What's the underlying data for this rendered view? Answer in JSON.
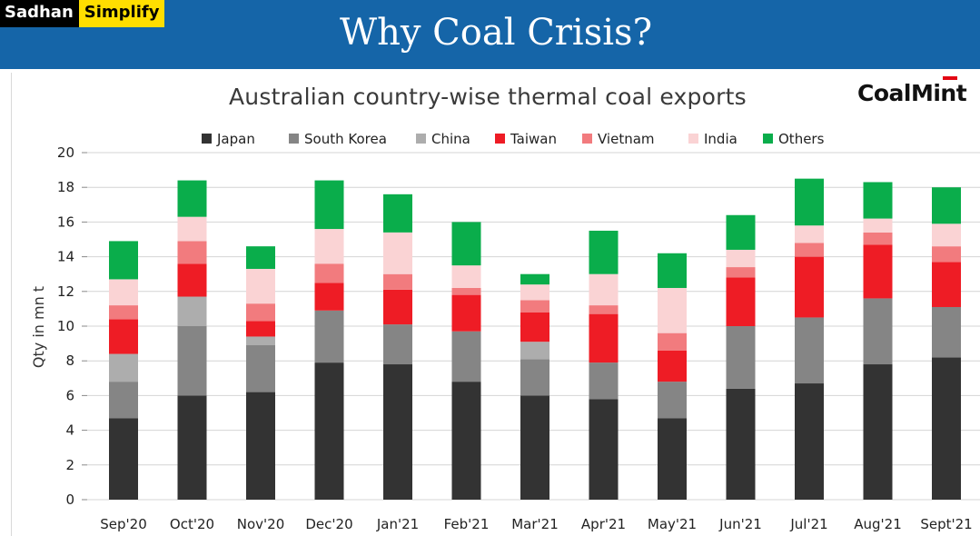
{
  "header": {
    "logo_part1": "Sadhan",
    "logo_part2": "Simplify",
    "title": "Why Coal Crisis?",
    "bar_color": "#1565a8"
  },
  "brand": {
    "name": "CoalMint",
    "accent_color": "#e30613"
  },
  "chart_data": {
    "type": "bar",
    "stacked": true,
    "title": "Australian country-wise thermal coal exports",
    "xlabel": "",
    "ylabel": "Qty in mn t",
    "ylim": [
      0,
      20
    ],
    "yticks": [
      0,
      2,
      4,
      6,
      8,
      10,
      12,
      14,
      16,
      18,
      20
    ],
    "grid": true,
    "legend_position": "top",
    "categories": [
      "Sep'20",
      "Oct'20",
      "Nov'20",
      "Dec'20",
      "Jan'21",
      "Feb'21",
      "Mar'21",
      "Apr'21",
      "May'21",
      "Jun'21",
      "Jul'21",
      "Aug'21",
      "Sept'21"
    ],
    "series": [
      {
        "name": "Japan",
        "color": "#333333",
        "values": [
          4.7,
          6.0,
          6.2,
          7.9,
          7.8,
          6.8,
          6.0,
          5.8,
          4.7,
          6.4,
          6.7,
          7.8,
          8.2
        ]
      },
      {
        "name": "South Korea",
        "color": "#858585",
        "values": [
          2.1,
          4.0,
          2.7,
          3.0,
          2.3,
          2.9,
          2.1,
          2.1,
          2.1,
          3.6,
          3.8,
          3.8,
          2.9
        ]
      },
      {
        "name": "China",
        "color": "#adadad",
        "values": [
          1.6,
          1.7,
          0.5,
          0.0,
          0.0,
          0.0,
          1.0,
          0.0,
          0.0,
          0.0,
          0.0,
          0.0,
          0.0
        ]
      },
      {
        "name": "Taiwan",
        "color": "#ee1c25",
        "values": [
          2.0,
          1.9,
          0.9,
          1.6,
          2.0,
          2.1,
          1.7,
          2.8,
          1.8,
          2.8,
          3.5,
          3.1,
          2.6
        ]
      },
      {
        "name": "Vietnam",
        "color": "#f27b7e",
        "values": [
          0.8,
          1.3,
          1.0,
          1.1,
          0.9,
          0.4,
          0.7,
          0.5,
          1.0,
          0.6,
          0.8,
          0.7,
          0.9
        ]
      },
      {
        "name": "India",
        "color": "#fad3d4",
        "values": [
          1.5,
          1.4,
          2.0,
          2.0,
          2.4,
          1.3,
          0.9,
          1.8,
          2.6,
          1.0,
          1.0,
          0.8,
          1.3
        ]
      },
      {
        "name": "Others",
        "color": "#0aad4b",
        "values": [
          2.2,
          2.1,
          1.3,
          2.8,
          2.2,
          2.5,
          0.6,
          2.5,
          2.0,
          2.0,
          2.7,
          2.1,
          2.1
        ]
      }
    ]
  }
}
